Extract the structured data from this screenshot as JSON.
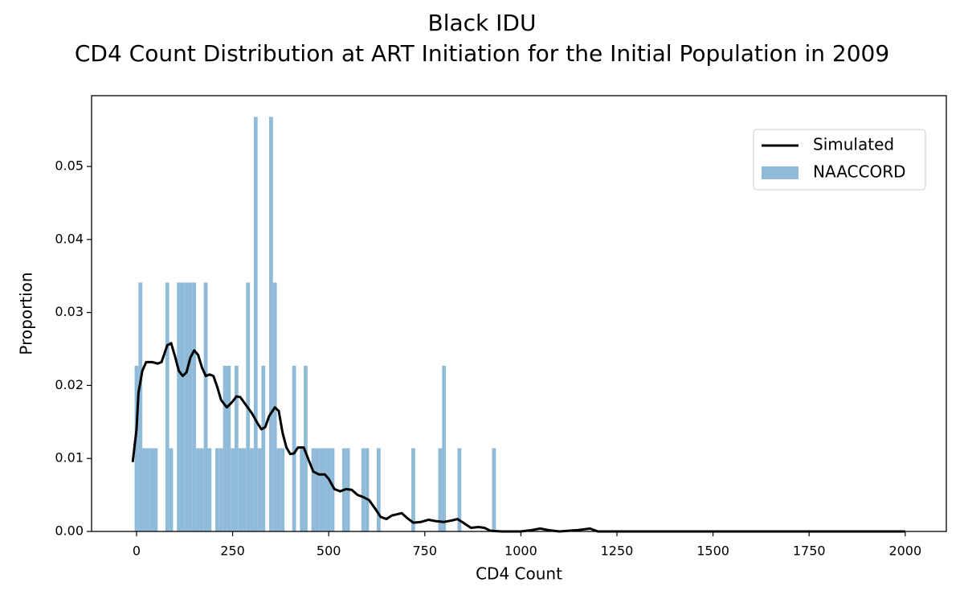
{
  "chart_data": {
    "type": "histogram",
    "title": "Black IDU",
    "subtitle": "CD4 Count Distribution at ART Initiation for the Initial Population in 2009",
    "xlabel": "CD4 Count",
    "ylabel": "Proportion",
    "xlim": [
      -117,
      2107
    ],
    "ylim": [
      0,
      0.0597
    ],
    "xticks": [
      0,
      250,
      500,
      750,
      1000,
      1250,
      1500,
      1750,
      2000
    ],
    "yticks": [
      {
        "value": 0,
        "label": "0.00"
      },
      {
        "value": 0.01,
        "label": "0.01"
      },
      {
        "value": 0.02,
        "label": "0.02"
      },
      {
        "value": 0.03,
        "label": "0.03"
      },
      {
        "value": 0.04,
        "label": "0.04"
      },
      {
        "value": 0.05,
        "label": "0.05"
      }
    ],
    "legend": "upper right",
    "series": [
      {
        "name": "Simulated",
        "type": "line",
        "color": "#000000",
        "x": [
          -10,
          0,
          5,
          15,
          25,
          40,
          55,
          65,
          80,
          90,
          100,
          110,
          120,
          130,
          140,
          150,
          160,
          170,
          180,
          190,
          200,
          210,
          220,
          235,
          250,
          260,
          270,
          285,
          300,
          315,
          325,
          335,
          345,
          360,
          370,
          380,
          390,
          400,
          410,
          420,
          435,
          450,
          460,
          475,
          490,
          500,
          515,
          530,
          545,
          560,
          575,
          590,
          605,
          620,
          635,
          650,
          665,
          690,
          705,
          720,
          740,
          760,
          780,
          800,
          820,
          835,
          850,
          870,
          890,
          905,
          920,
          950,
          1000,
          1030,
          1050,
          1070,
          1100,
          1150,
          1180,
          1200,
          1300,
          2000
        ],
        "values": [
          0.0095,
          0.014,
          0.019,
          0.022,
          0.0232,
          0.0232,
          0.023,
          0.0232,
          0.0255,
          0.0258,
          0.024,
          0.022,
          0.0213,
          0.0218,
          0.0238,
          0.0248,
          0.0242,
          0.0225,
          0.0213,
          0.0215,
          0.0213,
          0.0198,
          0.018,
          0.017,
          0.0178,
          0.0185,
          0.0184,
          0.0173,
          0.0162,
          0.0148,
          0.014,
          0.0143,
          0.0158,
          0.017,
          0.0165,
          0.0135,
          0.0115,
          0.0106,
          0.0107,
          0.0115,
          0.0115,
          0.0095,
          0.0082,
          0.0078,
          0.0078,
          0.0072,
          0.0058,
          0.0055,
          0.0058,
          0.0057,
          0.005,
          0.0047,
          0.0043,
          0.0032,
          0.002,
          0.0017,
          0.0022,
          0.0025,
          0.0018,
          0.0012,
          0.0013,
          0.0016,
          0.0014,
          0.0013,
          0.0015,
          0.0017,
          0.0012,
          0.0005,
          0.0006,
          0.0005,
          0.0001,
          0,
          0,
          0.0002,
          0.0004,
          0.0002,
          0,
          0.0002,
          0.0004,
          0,
          0,
          0
        ]
      },
      {
        "name": "NAACCORD",
        "type": "histogram",
        "color": "#8fbbd9",
        "bins": [
          -5,
          5,
          15,
          25,
          35,
          45,
          55,
          65,
          75,
          85,
          95,
          105,
          115,
          125,
          135,
          145,
          155,
          165,
          175,
          185,
          195,
          205,
          215,
          225,
          235,
          245,
          255,
          265,
          275,
          285,
          295,
          305,
          315,
          325,
          335,
          345,
          355,
          365,
          375,
          385,
          395,
          405,
          415,
          425,
          435,
          445,
          455,
          465,
          475,
          485,
          495,
          505,
          515,
          525,
          535,
          545,
          555,
          565,
          575,
          585,
          595,
          605,
          615,
          625,
          635,
          645,
          655,
          665,
          675,
          685,
          695,
          705,
          715,
          725,
          735,
          745,
          755,
          765,
          775,
          785,
          795,
          805,
          815,
          825,
          835,
          845,
          855,
          865,
          875,
          885,
          895,
          905,
          915,
          925,
          935
        ],
        "values": [
          0.0227,
          0.0341,
          0.0114,
          0.0114,
          0.0114,
          0.0114,
          0,
          0,
          0.0341,
          0.0114,
          0,
          0.0341,
          0.0341,
          0.0341,
          0.0341,
          0.0341,
          0.0114,
          0.0114,
          0.0341,
          0.0114,
          0,
          0.0114,
          0.0114,
          0.0227,
          0.0227,
          0.0114,
          0.0227,
          0.0114,
          0.0114,
          0.0341,
          0.0114,
          0.0568,
          0.0114,
          0.0227,
          0,
          0.0568,
          0.0341,
          0.0114,
          0.0114,
          0,
          0,
          0.0227,
          0,
          0.0114,
          0.0227,
          0,
          0.0114,
          0.0114,
          0.0114,
          0.0114,
          0.0114,
          0.0114,
          0,
          0,
          0.0114,
          0.0114,
          0,
          0,
          0,
          0.0114,
          0.0114,
          0,
          0,
          0.0114,
          0,
          0,
          0,
          0,
          0,
          0,
          0,
          0,
          0.0114,
          0,
          0,
          0,
          0,
          0,
          0,
          0.0114,
          0.0227,
          0,
          0,
          0,
          0.0114,
          0,
          0,
          0,
          0,
          0,
          0,
          0,
          0,
          0.0114
        ]
      }
    ]
  }
}
